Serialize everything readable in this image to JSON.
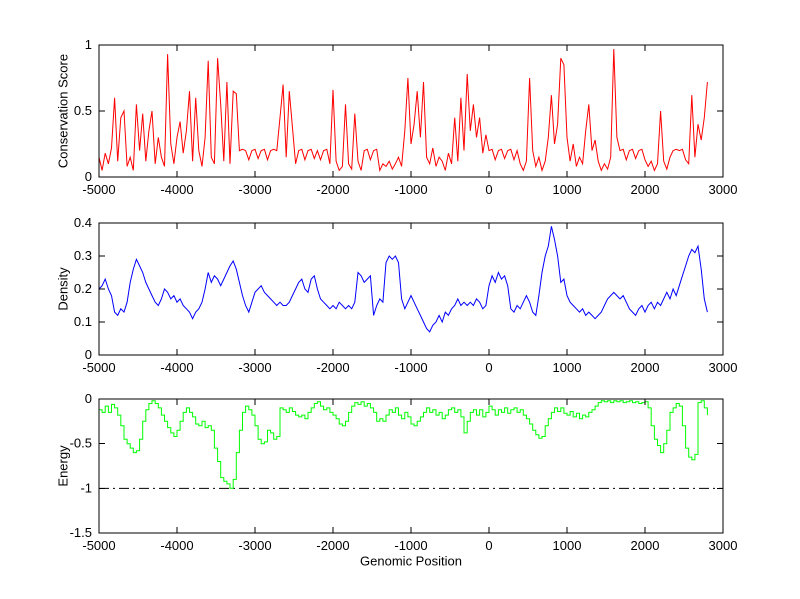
{
  "figure": {
    "background": "#ffffff",
    "xlabel": "Genomic Position",
    "xlim": [
      -5000,
      3000
    ],
    "xticks": [
      -5000,
      -4000,
      -3000,
      -2000,
      -1000,
      0,
      1000,
      2000,
      3000
    ],
    "xtick_labels": [
      "-5000",
      "-4000",
      "-3000",
      "-2000",
      "-1000",
      "0",
      "1000",
      "2000",
      "3000"
    ]
  },
  "chart_data": [
    {
      "id": "conservation",
      "type": "line",
      "ylabel": "Conservation Score",
      "line_color": "#ff0000",
      "ylim": [
        0,
        1
      ],
      "yticks": [
        0,
        0.5,
        1
      ],
      "ytick_labels": [
        "0",
        "0.5",
        "1"
      ],
      "grid": false,
      "step": false,
      "x_start": -5000,
      "x_step": 40,
      "y": [
        0.15,
        0.05,
        0.18,
        0.1,
        0.22,
        0.6,
        0.12,
        0.45,
        0.5,
        0.08,
        0.15,
        0.05,
        0.55,
        0.2,
        0.48,
        0.12,
        0.35,
        0.5,
        0.1,
        0.3,
        0.15,
        0.08,
        0.93,
        0.25,
        0.1,
        0.3,
        0.42,
        0.18,
        0.35,
        0.65,
        0.12,
        0.6,
        0.2,
        0.08,
        0.3,
        0.88,
        0.15,
        0.1,
        0.9,
        0.55,
        0.12,
        0.72,
        0.1,
        0.65,
        0.63,
        0.2,
        0.21,
        0.2,
        0.13,
        0.2,
        0.21,
        0.14,
        0.2,
        0.21,
        0.13,
        0.2,
        0.21,
        0.2,
        0.45,
        0.7,
        0.15,
        0.65,
        0.38,
        0.1,
        0.2,
        0.21,
        0.13,
        0.2,
        0.21,
        0.14,
        0.2,
        0.13,
        0.2,
        0.21,
        0.1,
        0.66,
        0.12,
        0.05,
        0.08,
        0.55,
        0.1,
        0.06,
        0.48,
        0.12,
        0.05,
        0.2,
        0.21,
        0.13,
        0.2,
        0.21,
        0.05,
        0.1,
        0.08,
        0.12,
        0.06,
        0.1,
        0.15,
        0.08,
        0.35,
        0.75,
        0.25,
        0.4,
        0.65,
        0.3,
        0.72,
        0.15,
        0.1,
        0.22,
        0.08,
        0.15,
        0.12,
        0.05,
        0.18,
        0.1,
        0.45,
        0.12,
        0.6,
        0.2,
        0.78,
        0.35,
        0.55,
        0.3,
        0.45,
        0.18,
        0.32,
        0.2,
        0.21,
        0.13,
        0.2,
        0.21,
        0.14,
        0.2,
        0.21,
        0.13,
        0.2,
        0.1,
        0.05,
        0.12,
        0.75,
        0.2,
        0.08,
        0.15,
        0.05,
        0.12,
        0.3,
        0.62,
        0.25,
        0.4,
        0.9,
        0.85,
        0.3,
        0.12,
        0.25,
        0.08,
        0.15,
        0.1,
        0.35,
        0.55,
        0.2,
        0.28,
        0.12,
        0.05,
        0.1,
        0.06,
        0.15,
        0.97,
        0.3,
        0.2,
        0.21,
        0.13,
        0.2,
        0.21,
        0.14,
        0.2,
        0.21,
        0.13,
        0.08,
        0.12,
        0.05,
        0.1,
        0.5,
        0.12,
        0.06,
        0.15,
        0.2,
        0.21,
        0.2,
        0.21,
        0.13,
        0.1,
        0.62,
        0.15,
        0.4,
        0.28,
        0.45,
        0.72
      ]
    },
    {
      "id": "density",
      "type": "line",
      "ylabel": "Density",
      "line_color": "#0000ff",
      "ylim": [
        0,
        0.4
      ],
      "yticks": [
        0,
        0.1,
        0.2,
        0.3,
        0.4
      ],
      "ytick_labels": [
        "0",
        "0.1",
        "0.2",
        "0.3",
        "0.4"
      ],
      "grid": false,
      "step": false,
      "x_start": -5000,
      "x_step": 40,
      "y": [
        0.2,
        0.21,
        0.23,
        0.2,
        0.18,
        0.13,
        0.12,
        0.14,
        0.13,
        0.16,
        0.22,
        0.26,
        0.29,
        0.27,
        0.25,
        0.22,
        0.2,
        0.18,
        0.16,
        0.15,
        0.17,
        0.2,
        0.19,
        0.17,
        0.18,
        0.16,
        0.17,
        0.15,
        0.14,
        0.13,
        0.11,
        0.13,
        0.14,
        0.16,
        0.2,
        0.25,
        0.22,
        0.24,
        0.23,
        0.21,
        0.23,
        0.25,
        0.27,
        0.285,
        0.26,
        0.22,
        0.18,
        0.15,
        0.13,
        0.16,
        0.19,
        0.2,
        0.21,
        0.19,
        0.18,
        0.17,
        0.16,
        0.15,
        0.16,
        0.15,
        0.15,
        0.16,
        0.18,
        0.2,
        0.22,
        0.23,
        0.2,
        0.19,
        0.23,
        0.24,
        0.2,
        0.17,
        0.16,
        0.15,
        0.14,
        0.15,
        0.14,
        0.16,
        0.15,
        0.14,
        0.15,
        0.14,
        0.16,
        0.25,
        0.24,
        0.22,
        0.23,
        0.24,
        0.12,
        0.15,
        0.17,
        0.16,
        0.28,
        0.3,
        0.29,
        0.3,
        0.28,
        0.17,
        0.14,
        0.16,
        0.18,
        0.16,
        0.14,
        0.12,
        0.1,
        0.08,
        0.07,
        0.09,
        0.1,
        0.12,
        0.1,
        0.13,
        0.12,
        0.14,
        0.15,
        0.17,
        0.15,
        0.16,
        0.15,
        0.16,
        0.15,
        0.17,
        0.16,
        0.14,
        0.15,
        0.21,
        0.24,
        0.22,
        0.25,
        0.23,
        0.24,
        0.21,
        0.14,
        0.13,
        0.15,
        0.14,
        0.16,
        0.18,
        0.16,
        0.13,
        0.12,
        0.18,
        0.25,
        0.3,
        0.33,
        0.39,
        0.35,
        0.3,
        0.22,
        0.23,
        0.18,
        0.16,
        0.15,
        0.14,
        0.13,
        0.14,
        0.12,
        0.13,
        0.12,
        0.11,
        0.12,
        0.13,
        0.15,
        0.17,
        0.18,
        0.19,
        0.18,
        0.17,
        0.18,
        0.16,
        0.14,
        0.13,
        0.12,
        0.14,
        0.15,
        0.13,
        0.15,
        0.16,
        0.14,
        0.16,
        0.15,
        0.17,
        0.19,
        0.17,
        0.2,
        0.18,
        0.21,
        0.24,
        0.27,
        0.3,
        0.32,
        0.31,
        0.33,
        0.26,
        0.17,
        0.13
      ]
    },
    {
      "id": "energy",
      "type": "line",
      "ylabel": "Energy",
      "xlabel": "Genomic Position",
      "line_color": "#00ff00",
      "ylim": [
        -1.5,
        0
      ],
      "yticks": [
        -1.5,
        -1,
        -0.5,
        0
      ],
      "ytick_labels": [
        "-1.5",
        "-1",
        "-0.5",
        "0"
      ],
      "grid": false,
      "step": true,
      "refline": {
        "y": -1,
        "color": "#000000",
        "style": "dash-dot"
      },
      "x_start": -5000,
      "x_step": 40,
      "y": [
        -0.12,
        -0.15,
        -0.08,
        -0.15,
        -0.06,
        -0.1,
        -0.18,
        -0.3,
        -0.45,
        -0.5,
        -0.55,
        -0.6,
        -0.58,
        -0.45,
        -0.25,
        -0.12,
        -0.05,
        -0.02,
        -0.05,
        -0.1,
        -0.18,
        -0.25,
        -0.32,
        -0.38,
        -0.42,
        -0.35,
        -0.25,
        -0.15,
        -0.1,
        -0.15,
        -0.2,
        -0.28,
        -0.3,
        -0.25,
        -0.32,
        -0.3,
        -0.35,
        -0.55,
        -0.7,
        -0.88,
        -0.92,
        -0.95,
        -1.0,
        -0.9,
        -0.6,
        -0.35,
        -0.15,
        -0.08,
        -0.12,
        -0.18,
        -0.3,
        -0.45,
        -0.5,
        -0.48,
        -0.35,
        -0.38,
        -0.45,
        -0.42,
        -0.1,
        -0.12,
        -0.15,
        -0.1,
        -0.14,
        -0.18,
        -0.2,
        -0.18,
        -0.22,
        -0.15,
        -0.1,
        -0.05,
        -0.03,
        -0.08,
        -0.12,
        -0.1,
        -0.15,
        -0.18,
        -0.22,
        -0.28,
        -0.3,
        -0.25,
        -0.15,
        -0.08,
        -0.04,
        -0.06,
        -0.03,
        -0.08,
        -0.05,
        -0.1,
        -0.15,
        -0.25,
        -0.22,
        -0.25,
        -0.18,
        -0.12,
        -0.15,
        -0.1,
        -0.18,
        -0.22,
        -0.15,
        -0.2,
        -0.28,
        -0.3,
        -0.25,
        -0.2,
        -0.15,
        -0.1,
        -0.15,
        -0.12,
        -0.18,
        -0.15,
        -0.22,
        -0.18,
        -0.12,
        -0.1,
        -0.15,
        -0.12,
        -0.2,
        -0.38,
        -0.25,
        -0.15,
        -0.12,
        -0.18,
        -0.12,
        -0.2,
        -0.15,
        -0.08,
        -0.12,
        -0.18,
        -0.12,
        -0.15,
        -0.1,
        -0.16,
        -0.12,
        -0.1,
        -0.15,
        -0.12,
        -0.18,
        -0.22,
        -0.28,
        -0.35,
        -0.4,
        -0.44,
        -0.42,
        -0.3,
        -0.22,
        -0.15,
        -0.1,
        -0.14,
        -0.1,
        -0.16,
        -0.18,
        -0.14,
        -0.2,
        -0.16,
        -0.22,
        -0.18,
        -0.2,
        -0.15,
        -0.12,
        -0.08,
        -0.04,
        -0.02,
        -0.03,
        -0.02,
        -0.04,
        -0.02,
        -0.03,
        -0.02,
        -0.04,
        -0.03,
        -0.02,
        -0.04,
        -0.03,
        -0.05,
        -0.04,
        -0.03,
        -0.1,
        -0.3,
        -0.45,
        -0.52,
        -0.6,
        -0.5,
        -0.35,
        -0.15,
        -0.1,
        -0.05,
        -0.08,
        -0.3,
        -0.55,
        -0.65,
        -0.68,
        -0.62,
        -0.04,
        -0.02,
        -0.1,
        -0.18
      ]
    }
  ]
}
